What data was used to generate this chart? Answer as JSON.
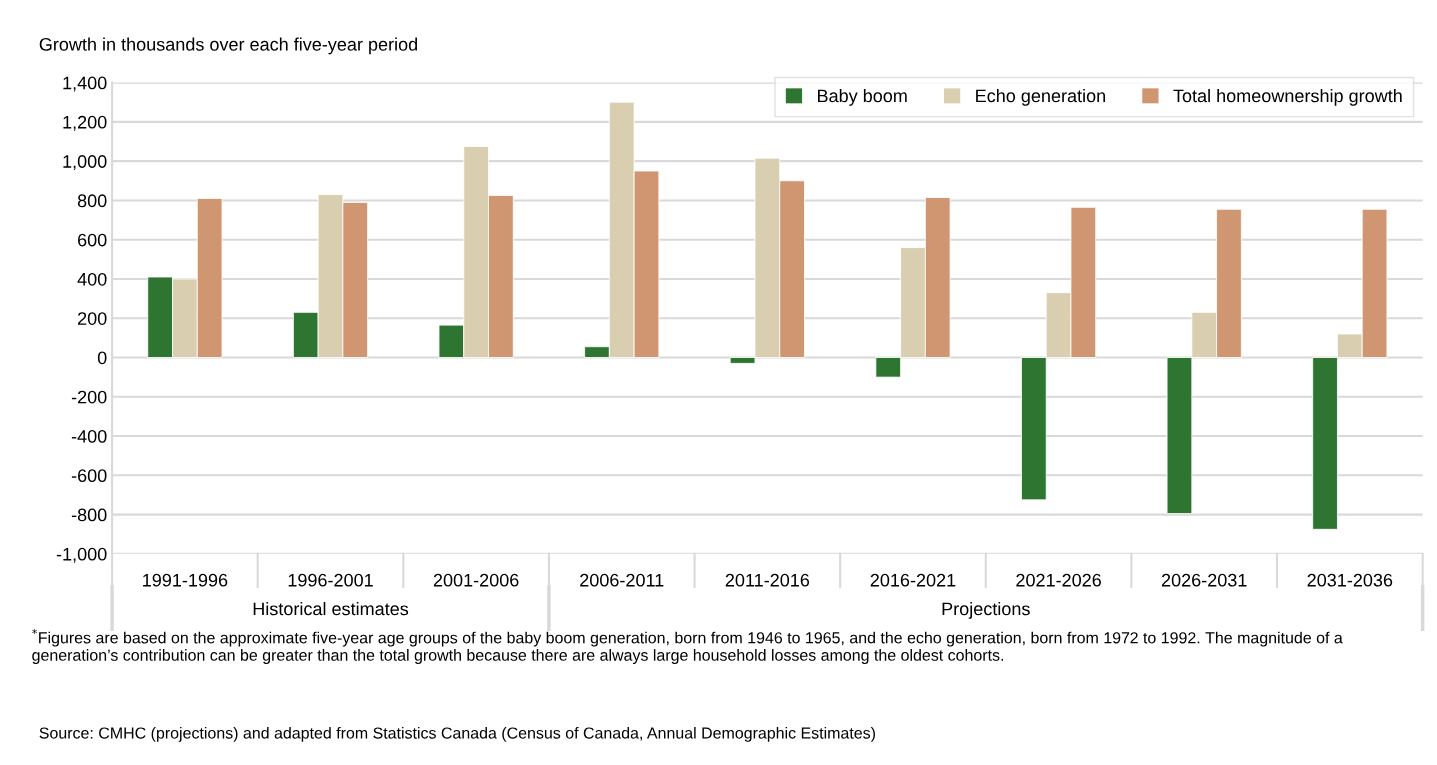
{
  "chart_data": {
    "type": "bar",
    "ylabel": "Growth in thousands over each five-year period",
    "categories": [
      "1991-1996",
      "1996-2001",
      "2001-2006",
      "2006-2011",
      "2011-2016",
      "2016-2021",
      "2021-2026",
      "2026-2031",
      "2031-2036"
    ],
    "series": [
      {
        "name": "Baby boom",
        "color": "#2e7532",
        "values": [
          410,
          230,
          165,
          55,
          -30,
          -100,
          -725,
          -795,
          -875
        ]
      },
      {
        "name": "Echo generation",
        "color": "#d9cfb0",
        "values": [
          400,
          830,
          1075,
          1300,
          1015,
          560,
          330,
          230,
          120
        ]
      },
      {
        "name": "Total homeownership growth",
        "color": "#d09571",
        "values": [
          810,
          790,
          825,
          950,
          900,
          815,
          765,
          755,
          755
        ]
      }
    ],
    "ylim": [
      -1000,
      1400
    ],
    "yticks": [
      {
        "value": -1000,
        "label": "-1,000"
      },
      {
        "value": -800,
        "label": "-800"
      },
      {
        "value": -600,
        "label": "-600"
      },
      {
        "value": -400,
        "label": "-400"
      },
      {
        "value": -200,
        "label": "-200"
      },
      0,
      200,
      400,
      600,
      800,
      {
        "value": 1000,
        "label": "1,000"
      },
      {
        "value": 1200,
        "label": "1,200"
      },
      {
        "value": 1400,
        "label": "1,400"
      }
    ],
    "grid": "y",
    "legend": "top right",
    "annotations": [
      "Historical estimates",
      "Projections",
      "$^{*}$Figures are based on the approximate five-year age groups of the baby boom generation, born from 1946 to 1965, and the echo generation, born from 1972 to 1992. The magnitude of a generation’s contribution can be greater than the total growth because there are always large household losses among the oldest cohorts.",
      "Source: CMHC (projections) and adapted from Statistics Canada (Census of Canada, Annual Demographic Estimates)"
    ]
  }
}
